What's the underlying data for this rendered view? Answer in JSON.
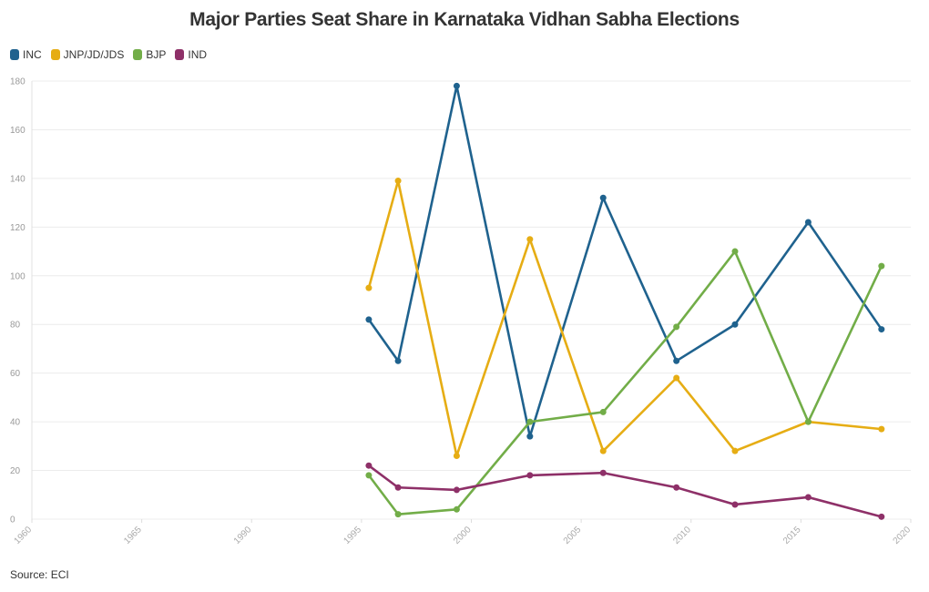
{
  "title": "Major Parties Seat Share in Karnataka Vidhan Sabha Elections",
  "source": "Source: ECI",
  "chart_data": {
    "type": "line",
    "title": "Major Parties Seat Share in Karnataka Vidhan Sabha Elections",
    "xlabel": "",
    "ylabel": "",
    "xlim": [
      1960,
      2020
    ],
    "ylim": [
      0,
      180
    ],
    "x_ticks": [
      "1960",
      "1965",
      "1990",
      "1995",
      "2000",
      "2005",
      "2010",
      "2015",
      "2020"
    ],
    "y_ticks": [
      "0",
      "20",
      "40",
      "60",
      "80",
      "100",
      "120",
      "140",
      "160",
      "180"
    ],
    "grid": true,
    "legend_position": "top-left",
    "x": [
      1983,
      1985,
      1989,
      1994,
      1999,
      2004,
      2008,
      2013,
      2018
    ],
    "series": [
      {
        "name": "INC",
        "color": "#1f628e",
        "values": [
          82,
          65,
          178,
          34,
          132,
          65,
          80,
          122,
          78
        ]
      },
      {
        "name": "JNP/JD/JDS",
        "color": "#e6ad14",
        "values": [
          95,
          139,
          26,
          115,
          28,
          58,
          28,
          40,
          37
        ]
      },
      {
        "name": "BJP",
        "color": "#72ad48",
        "values": [
          18,
          2,
          4,
          40,
          44,
          79,
          110,
          40,
          104
        ]
      },
      {
        "name": "IND",
        "color": "#8e3068",
        "values": [
          22,
          13,
          12,
          18,
          19,
          13,
          6,
          9,
          1
        ]
      }
    ]
  }
}
